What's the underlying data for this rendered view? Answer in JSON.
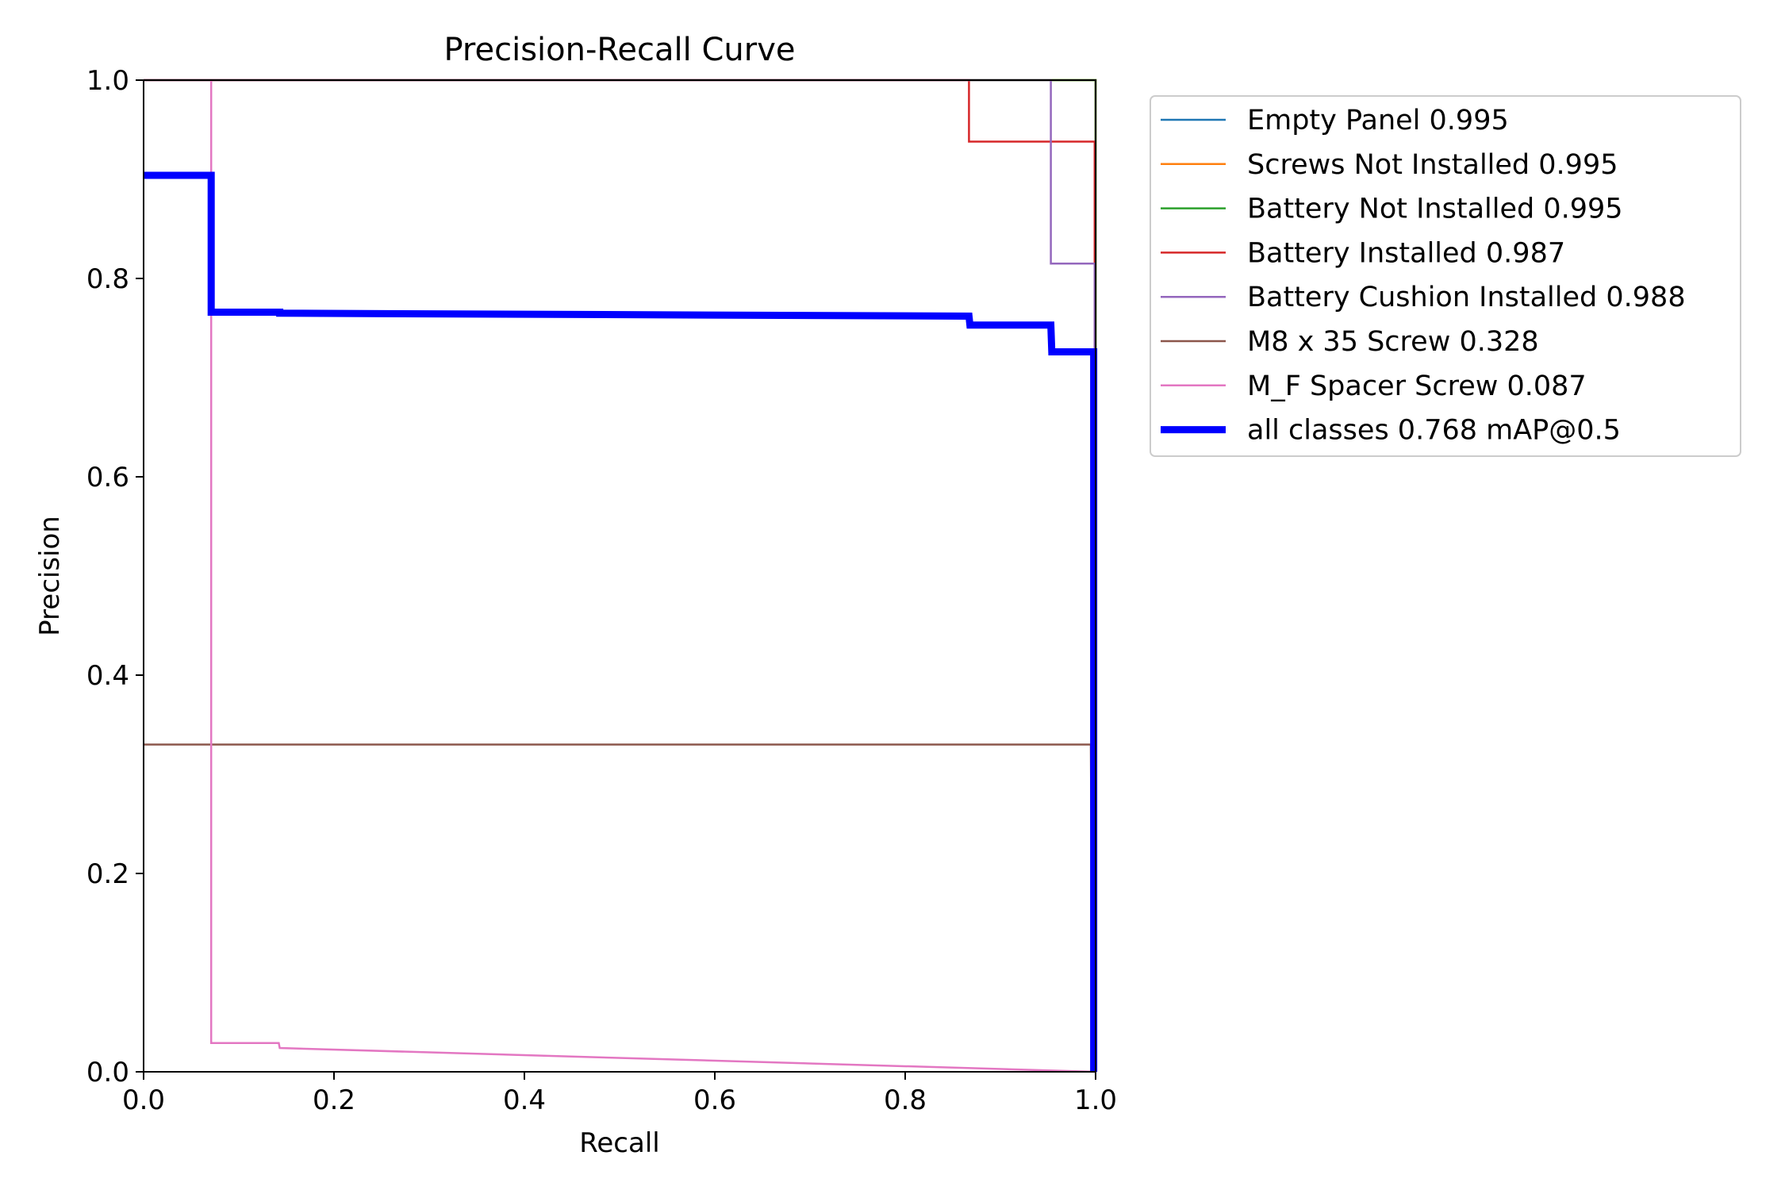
{
  "chart_data": {
    "type": "line",
    "title": "Precision-Recall Curve",
    "xlabel": "Recall",
    "ylabel": "Precision",
    "xlim": [
      0,
      1
    ],
    "ylim": [
      0,
      1
    ],
    "xticks": [
      "0.0",
      "0.2",
      "0.4",
      "0.6",
      "0.8",
      "1.0"
    ],
    "yticks": [
      "0.0",
      "0.2",
      "0.4",
      "0.6",
      "0.8",
      "1.0"
    ],
    "grid": false,
    "legend_position": "outside upper right",
    "series": [
      {
        "name": "Empty Panel 0.995",
        "color": "#1f77b4",
        "width": "thin",
        "x": [
          0.0,
          1.0,
          1.0
        ],
        "y": [
          1.0,
          1.0,
          0.0
        ]
      },
      {
        "name": "Screws Not Installed 0.995",
        "color": "#ff7f0e",
        "width": "thin",
        "x": [
          0.0,
          1.0,
          1.0
        ],
        "y": [
          1.0,
          1.0,
          0.0
        ]
      },
      {
        "name": "Battery Not Installed 0.995",
        "color": "#2ca02c",
        "width": "thin",
        "x": [
          0.0,
          1.0,
          1.0
        ],
        "y": [
          1.0,
          1.0,
          0.0
        ]
      },
      {
        "name": "Battery Installed 0.987",
        "color": "#d62728",
        "width": "thin",
        "x": [
          0.0,
          0.867,
          0.867,
          0.999,
          0.999
        ],
        "y": [
          1.0,
          1.0,
          0.938,
          0.938,
          0.0
        ]
      },
      {
        "name": "Battery Cushion Installed 0.988",
        "color": "#9467bd",
        "width": "thin",
        "x": [
          0.0,
          0.953,
          0.953,
          0.999,
          0.999
        ],
        "y": [
          1.0,
          1.0,
          0.815,
          0.815,
          0.0
        ]
      },
      {
        "name": "M8 x 35 Screw 0.328",
        "color": "#8c564b",
        "width": "thin",
        "x": [
          0.0,
          0.995,
          0.997
        ],
        "y": [
          0.33,
          0.33,
          0.0
        ]
      },
      {
        "name": "M_F Spacer Screw 0.087",
        "color": "#e377c2",
        "width": "thin",
        "x": [
          0.071,
          0.071,
          0.142,
          0.143,
          1.0
        ],
        "y": [
          1.0,
          0.029,
          0.029,
          0.024,
          0.0
        ]
      },
      {
        "name": "all classes 0.768 mAP@0.5",
        "color": "#0000ff",
        "width": "thick",
        "x": [
          0.0,
          0.071,
          0.071,
          0.143,
          0.143,
          0.867,
          0.868,
          0.953,
          0.954,
          0.998,
          0.998
        ],
        "y": [
          0.904,
          0.904,
          0.766,
          0.766,
          0.765,
          0.762,
          0.753,
          0.753,
          0.726,
          0.726,
          0.0
        ]
      }
    ]
  }
}
